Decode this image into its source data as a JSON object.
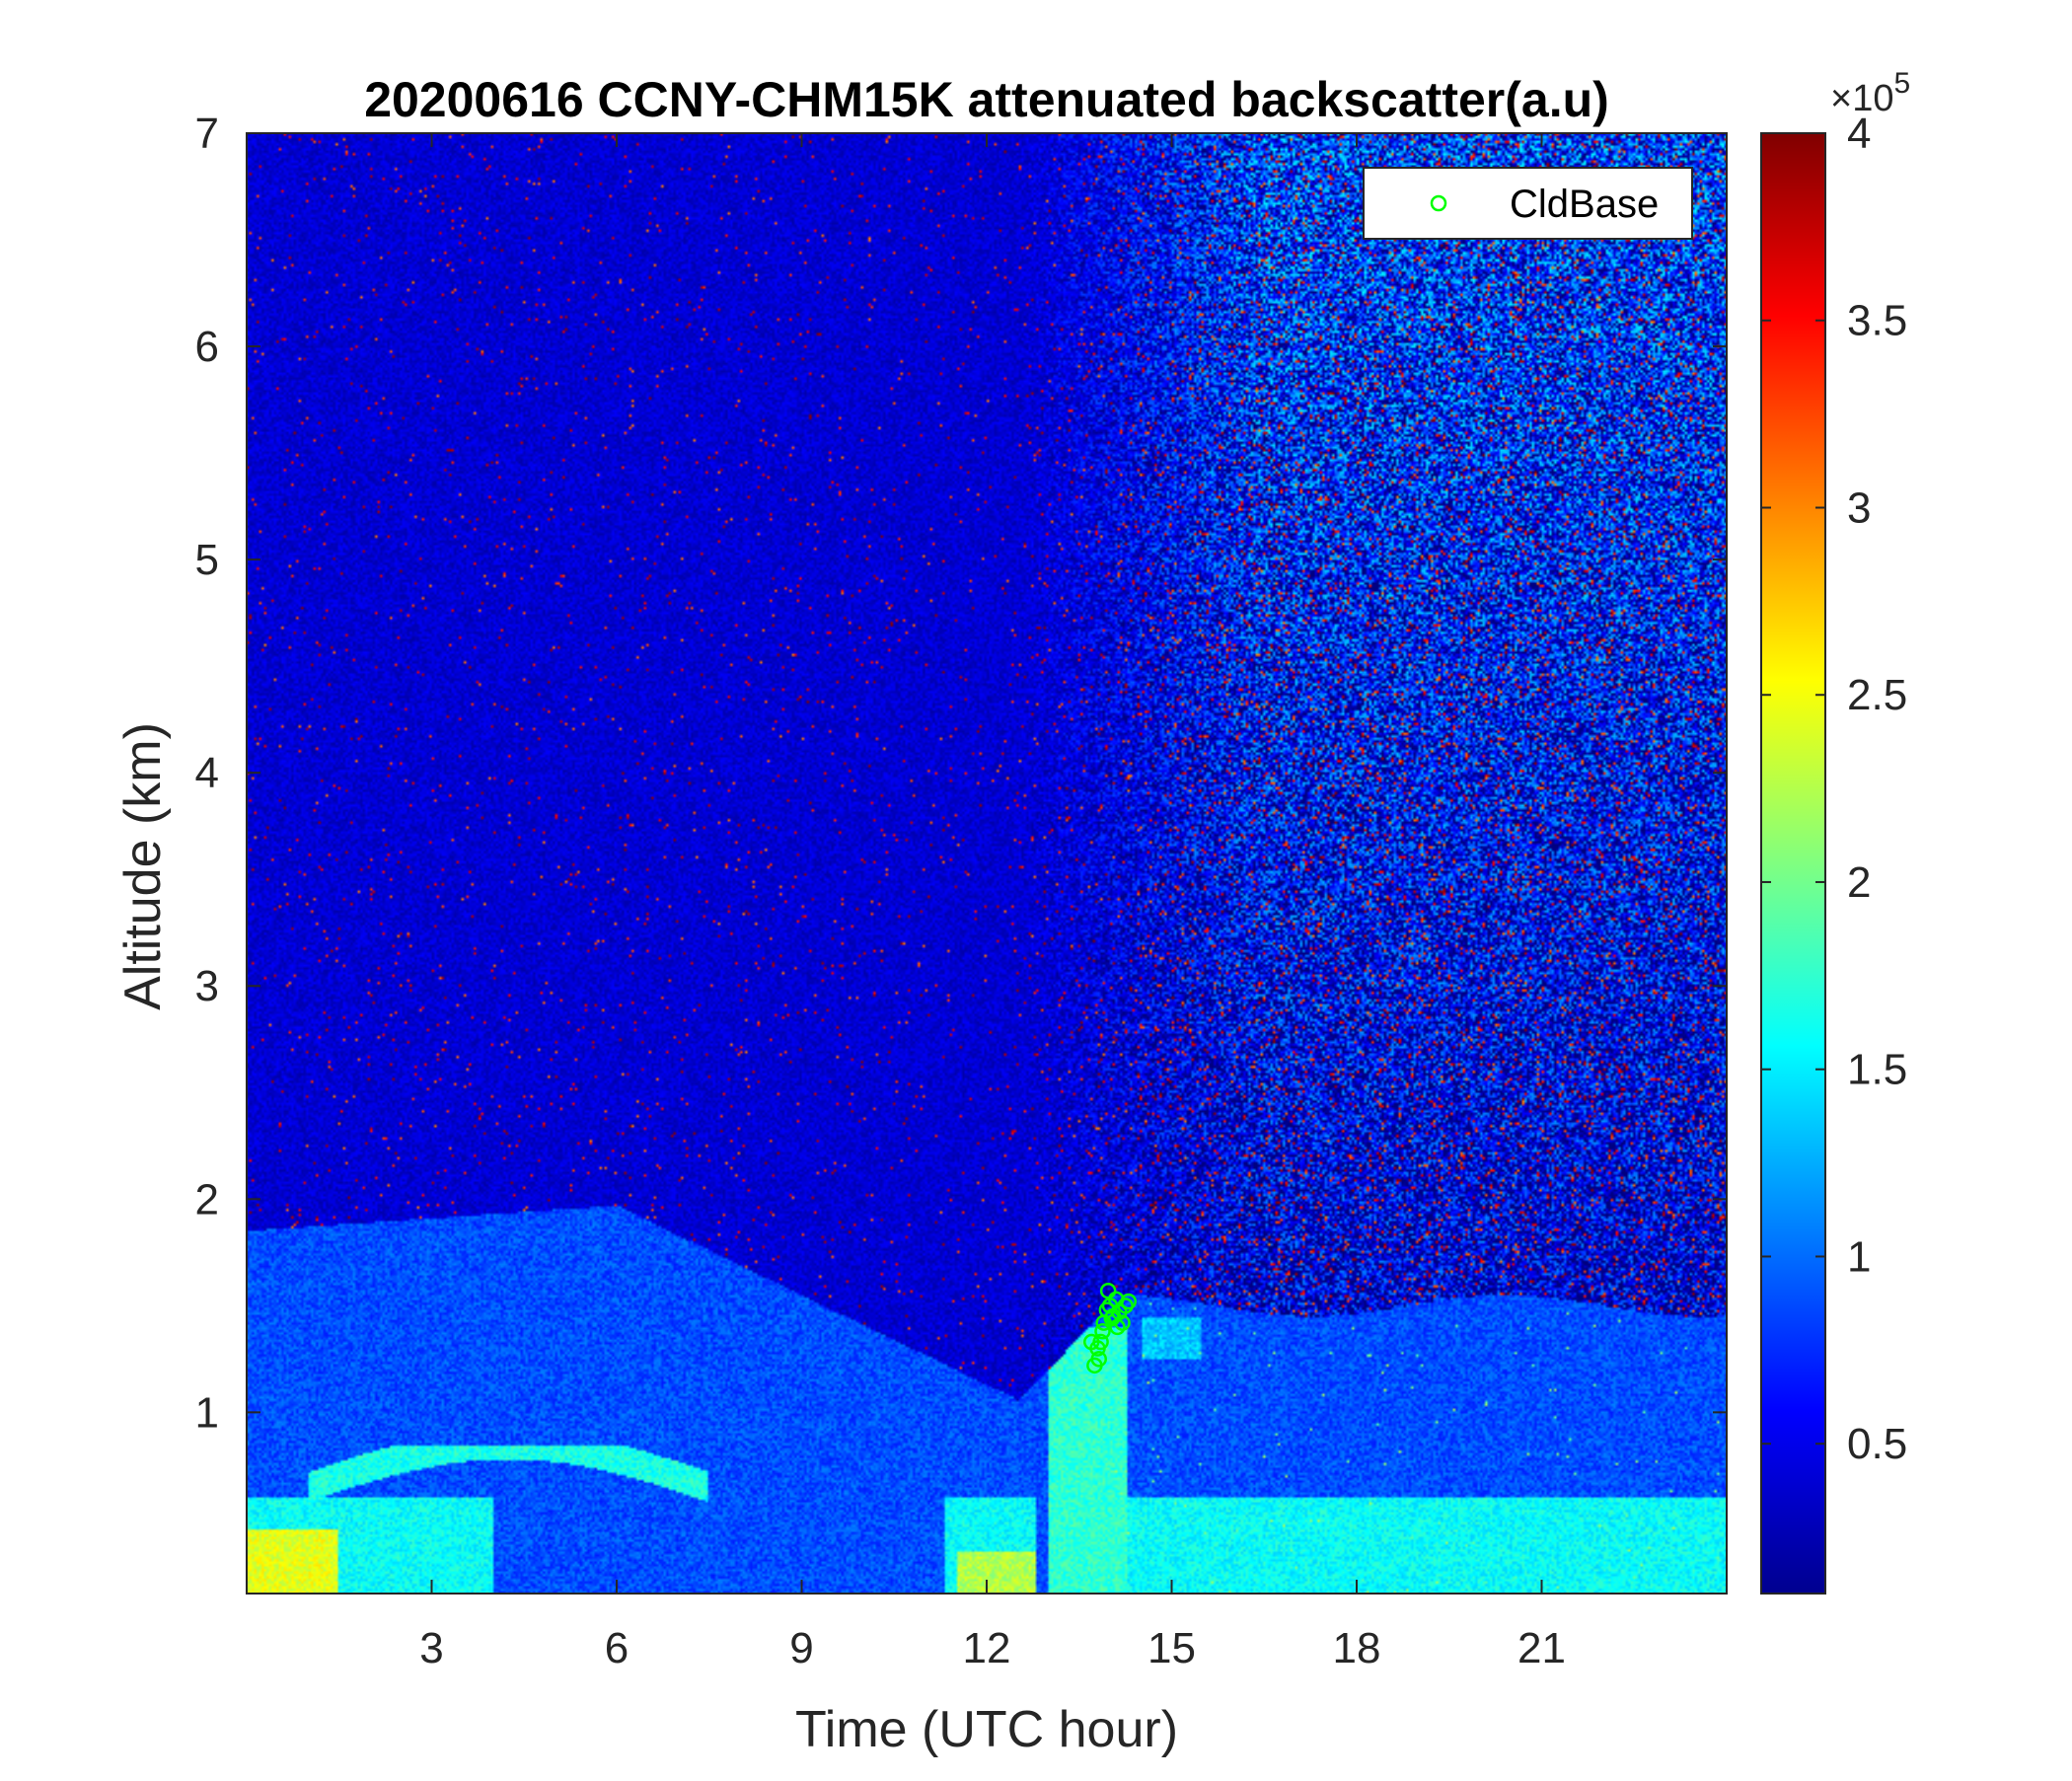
{
  "chart_data": {
    "type": "heatmap",
    "title": "20200616 CCNY-CHM15K attenuated backscatter(a.u)",
    "xlabel": "Time (UTC hour)",
    "ylabel": "Altitude (km)",
    "xlim": [
      0,
      24
    ],
    "ylim": [
      0.15,
      7
    ],
    "xticks": [
      "3",
      "6",
      "9",
      "12",
      "15",
      "18",
      "21"
    ],
    "yticks": [
      "1",
      "2",
      "3",
      "4",
      "5",
      "6",
      "7"
    ],
    "colorbar": {
      "min": 0.1,
      "max": 4,
      "ticks": [
        "0.5",
        "1",
        "1.5",
        "2",
        "2.5",
        "3",
        "3.5",
        "4"
      ],
      "multiplier": "×10",
      "exponent": "5",
      "colormap": "jet"
    },
    "legend": {
      "location": "top-right",
      "entries": [
        "CldBase"
      ]
    },
    "series": [
      {
        "name": "CldBase",
        "marker": "circle",
        "color": "#00ff00",
        "x": [
          13.75,
          13.8,
          13.85,
          13.9,
          13.95,
          14.0,
          14.05,
          14.1,
          14.15,
          14.2,
          14.25,
          13.7,
          13.82,
          13.97,
          14.12,
          14.3,
          13.88,
          14.03
        ],
        "y": [
          1.22,
          1.3,
          1.33,
          1.42,
          1.48,
          1.5,
          1.45,
          1.53,
          1.47,
          1.42,
          1.5,
          1.33,
          1.25,
          1.57,
          1.4,
          1.52,
          1.38,
          1.44
        ]
      }
    ],
    "field_description": "Backscatter field: dark blue aloft in morning hours, increasing red noise above 2 km after ~13 UTC; boundary layer top near 1.9 km until ~6-7 UTC, lower (~1 km) by 12 UTC, about 1.5 km after 14 UTC; strong near-surface aerosol (cyan/yellow) below 0.8 km early and around 12 UTC."
  }
}
